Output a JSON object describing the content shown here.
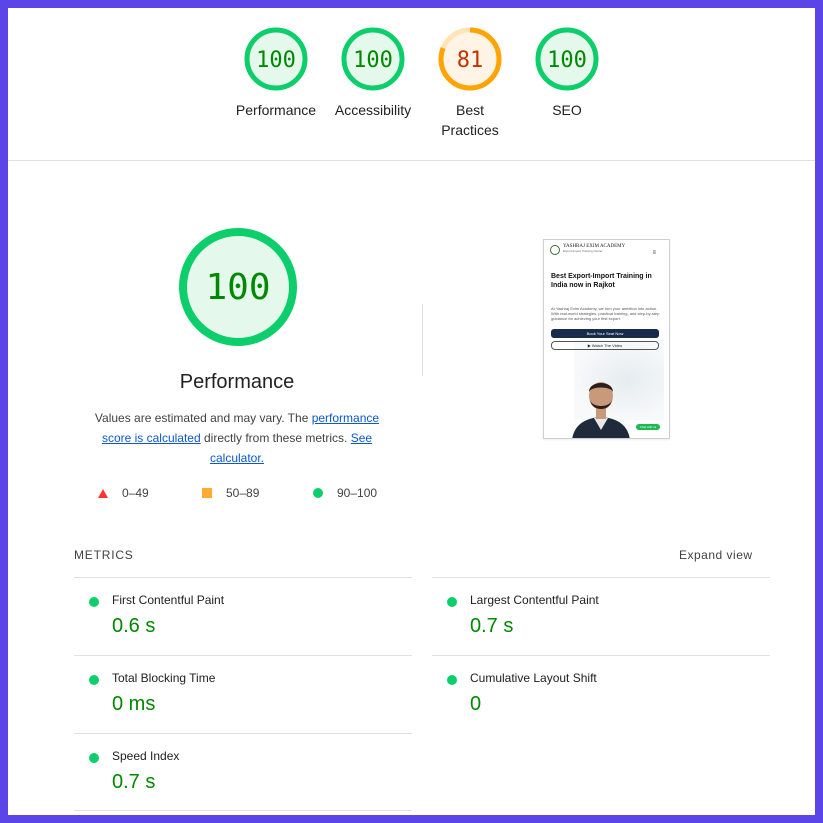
{
  "top_scores": [
    {
      "label": "Performance",
      "score": "100",
      "value": 100,
      "status": "pass"
    },
    {
      "label": "Accessibility",
      "score": "100",
      "value": 100,
      "status": "pass"
    },
    {
      "label": "Best Practices",
      "score": "81",
      "value": 81,
      "status": "average"
    },
    {
      "label": "SEO",
      "score": "100",
      "value": 100,
      "status": "pass"
    }
  ],
  "colors": {
    "pass": "#0cce6b",
    "pass_text": "#008800",
    "pass_fill": "#e5f8ec",
    "average": "#ffa400",
    "average_text": "#c33300",
    "average_fill": "#fff4e5",
    "fail": "#ff3333",
    "border_accent": "#5b45e8"
  },
  "main": {
    "score": "100",
    "title": "Performance",
    "desc_part1": "Values are estimated and may vary. The ",
    "link_score": "performance score is calculated",
    "desc_part2": " directly from these metrics. ",
    "link_calc": "See calculator."
  },
  "legend": [
    {
      "icon": "triangle-icon",
      "range": "0–49"
    },
    {
      "icon": "square-icon",
      "range": "50–89"
    },
    {
      "icon": "circle-icon",
      "range": "90–100"
    }
  ],
  "screenshot": {
    "brand": "YASHRAJ EXIM ACADEMY",
    "tagline": "Export-Import Training Center",
    "headline": "Best Export-Import Training in India now in Rajkot",
    "sub": "At Yashraj Exim Academy, we turn your ambition into action. With real-world strategies, practical training, and step-by-step guidance for achieving your first export.",
    "cta_primary": "Book Your Seat Now",
    "cta_secondary": "▶ Watch The Video",
    "whatsapp": "Chat with us"
  },
  "metrics": {
    "title": "METRICS",
    "expand": "Expand view",
    "items": [
      {
        "label": "First Contentful Paint",
        "value": "0.6 s"
      },
      {
        "label": "Largest Contentful Paint",
        "value": "0.7 s"
      },
      {
        "label": "Total Blocking Time",
        "value": "0 ms"
      },
      {
        "label": "Cumulative Layout Shift",
        "value": "0"
      },
      {
        "label": "Speed Index",
        "value": "0.7 s"
      }
    ]
  }
}
